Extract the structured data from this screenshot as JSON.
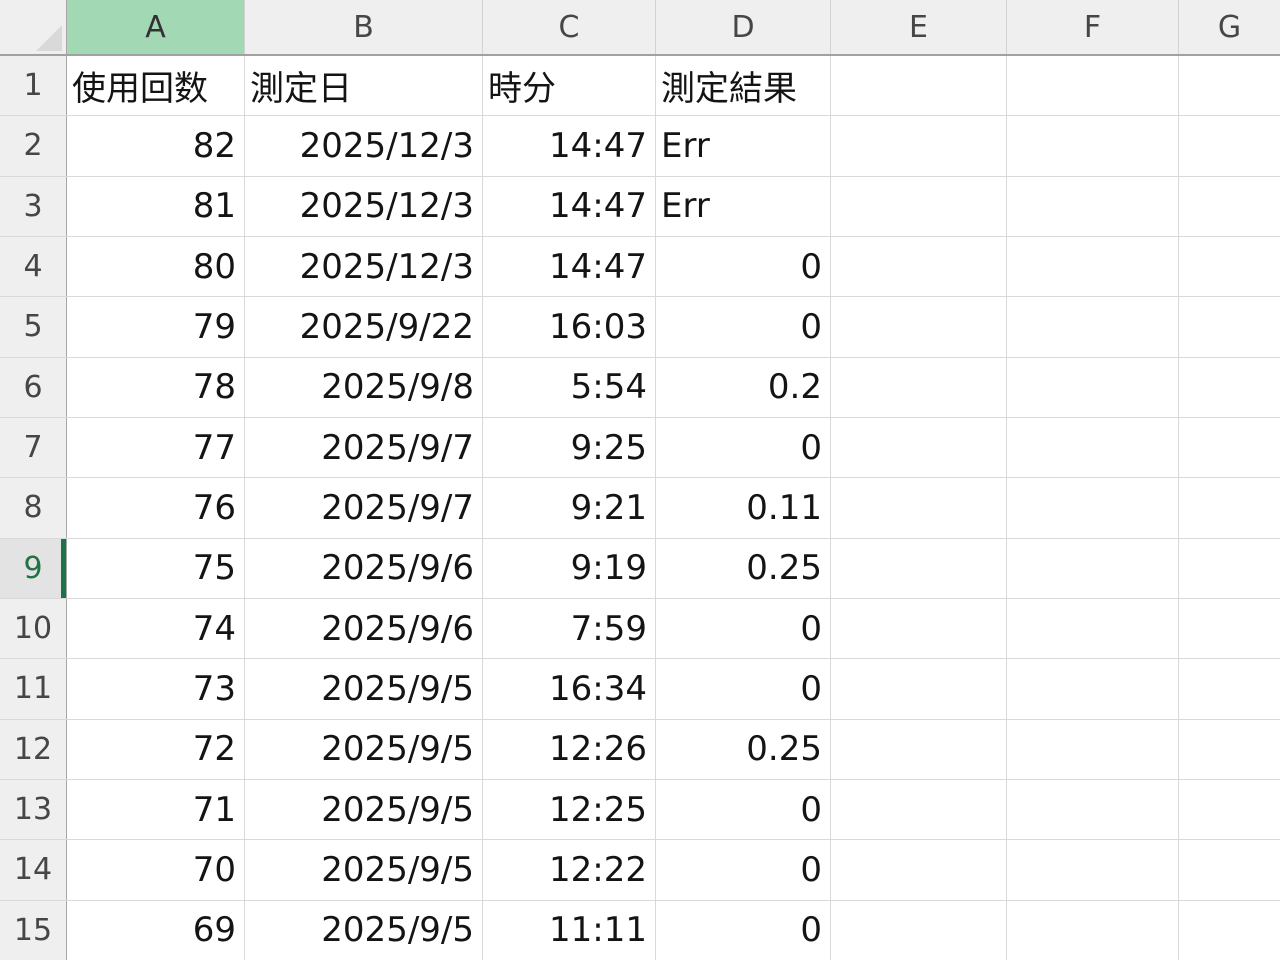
{
  "colors": {
    "selected_column_header_fill": "#a3d8b5",
    "selected_row_accent_bar": "#1f7245",
    "selected_row_number_text": "#217346",
    "header_background": "#efefef",
    "selected_row_header_background": "#e3e3e3",
    "gridline": "#d9d9d9",
    "header_separator": "#a1a1a1",
    "cell_text": "#141414",
    "header_text": "#464646"
  },
  "sheet": {
    "selected_cell": "A9",
    "columns": [
      {
        "letter": "A",
        "state": "selected"
      },
      {
        "letter": "B",
        "state": ""
      },
      {
        "letter": "C",
        "state": ""
      },
      {
        "letter": "D",
        "state": ""
      },
      {
        "letter": "E",
        "state": ""
      },
      {
        "letter": "F",
        "state": ""
      },
      {
        "letter": "G",
        "state": ""
      }
    ],
    "rows": [
      {
        "n": "1",
        "state": "",
        "cells": [
          {
            "v": "使用回数",
            "align": "left"
          },
          {
            "v": "測定日",
            "align": "left"
          },
          {
            "v": "時分",
            "align": "left"
          },
          {
            "v": "測定結果",
            "align": "left"
          },
          {
            "v": "",
            "align": "left"
          },
          {
            "v": "",
            "align": "left"
          },
          {
            "v": "",
            "align": "left"
          }
        ]
      },
      {
        "n": "2",
        "state": "",
        "cells": [
          {
            "v": "82",
            "align": "right"
          },
          {
            "v": "2025/12/3",
            "align": "right"
          },
          {
            "v": "14:47",
            "align": "right"
          },
          {
            "v": "Err",
            "align": "left"
          },
          {
            "v": "",
            "align": "left"
          },
          {
            "v": "",
            "align": "left"
          },
          {
            "v": "",
            "align": "left"
          }
        ]
      },
      {
        "n": "3",
        "state": "",
        "cells": [
          {
            "v": "81",
            "align": "right"
          },
          {
            "v": "2025/12/3",
            "align": "right"
          },
          {
            "v": "14:47",
            "align": "right"
          },
          {
            "v": "Err",
            "align": "left"
          },
          {
            "v": "",
            "align": "left"
          },
          {
            "v": "",
            "align": "left"
          },
          {
            "v": "",
            "align": "left"
          }
        ]
      },
      {
        "n": "4",
        "state": "",
        "cells": [
          {
            "v": "80",
            "align": "right"
          },
          {
            "v": "2025/12/3",
            "align": "right"
          },
          {
            "v": "14:47",
            "align": "right"
          },
          {
            "v": "0",
            "align": "right"
          },
          {
            "v": "",
            "align": "left"
          },
          {
            "v": "",
            "align": "left"
          },
          {
            "v": "",
            "align": "left"
          }
        ]
      },
      {
        "n": "5",
        "state": "",
        "cells": [
          {
            "v": "79",
            "align": "right"
          },
          {
            "v": "2025/9/22",
            "align": "right"
          },
          {
            "v": "16:03",
            "align": "right"
          },
          {
            "v": "0",
            "align": "right"
          },
          {
            "v": "",
            "align": "left"
          },
          {
            "v": "",
            "align": "left"
          },
          {
            "v": "",
            "align": "left"
          }
        ]
      },
      {
        "n": "6",
        "state": "",
        "cells": [
          {
            "v": "78",
            "align": "right"
          },
          {
            "v": "2025/9/8",
            "align": "right"
          },
          {
            "v": "5:54",
            "align": "right"
          },
          {
            "v": "0.2",
            "align": "right"
          },
          {
            "v": "",
            "align": "left"
          },
          {
            "v": "",
            "align": "left"
          },
          {
            "v": "",
            "align": "left"
          }
        ]
      },
      {
        "n": "7",
        "state": "",
        "cells": [
          {
            "v": "77",
            "align": "right"
          },
          {
            "v": "2025/9/7",
            "align": "right"
          },
          {
            "v": "9:25",
            "align": "right"
          },
          {
            "v": "0",
            "align": "right"
          },
          {
            "v": "",
            "align": "left"
          },
          {
            "v": "",
            "align": "left"
          },
          {
            "v": "",
            "align": "left"
          }
        ]
      },
      {
        "n": "8",
        "state": "",
        "cells": [
          {
            "v": "76",
            "align": "right"
          },
          {
            "v": "2025/9/7",
            "align": "right"
          },
          {
            "v": "9:21",
            "align": "right"
          },
          {
            "v": "0.11",
            "align": "right"
          },
          {
            "v": "",
            "align": "left"
          },
          {
            "v": "",
            "align": "left"
          },
          {
            "v": "",
            "align": "left"
          }
        ]
      },
      {
        "n": "9",
        "state": "selected",
        "cells": [
          {
            "v": "75",
            "align": "right"
          },
          {
            "v": "2025/9/6",
            "align": "right"
          },
          {
            "v": "9:19",
            "align": "right"
          },
          {
            "v": "0.25",
            "align": "right"
          },
          {
            "v": "",
            "align": "left"
          },
          {
            "v": "",
            "align": "left"
          },
          {
            "v": "",
            "align": "left"
          }
        ]
      },
      {
        "n": "10",
        "state": "",
        "cells": [
          {
            "v": "74",
            "align": "right"
          },
          {
            "v": "2025/9/6",
            "align": "right"
          },
          {
            "v": "7:59",
            "align": "right"
          },
          {
            "v": "0",
            "align": "right"
          },
          {
            "v": "",
            "align": "left"
          },
          {
            "v": "",
            "align": "left"
          },
          {
            "v": "",
            "align": "left"
          }
        ]
      },
      {
        "n": "11",
        "state": "",
        "cells": [
          {
            "v": "73",
            "align": "right"
          },
          {
            "v": "2025/9/5",
            "align": "right"
          },
          {
            "v": "16:34",
            "align": "right"
          },
          {
            "v": "0",
            "align": "right"
          },
          {
            "v": "",
            "align": "left"
          },
          {
            "v": "",
            "align": "left"
          },
          {
            "v": "",
            "align": "left"
          }
        ]
      },
      {
        "n": "12",
        "state": "",
        "cells": [
          {
            "v": "72",
            "align": "right"
          },
          {
            "v": "2025/9/5",
            "align": "right"
          },
          {
            "v": "12:26",
            "align": "right"
          },
          {
            "v": "0.25",
            "align": "right"
          },
          {
            "v": "",
            "align": "left"
          },
          {
            "v": "",
            "align": "left"
          },
          {
            "v": "",
            "align": "left"
          }
        ]
      },
      {
        "n": "13",
        "state": "",
        "cells": [
          {
            "v": "71",
            "align": "right"
          },
          {
            "v": "2025/9/5",
            "align": "right"
          },
          {
            "v": "12:25",
            "align": "right"
          },
          {
            "v": "0",
            "align": "right"
          },
          {
            "v": "",
            "align": "left"
          },
          {
            "v": "",
            "align": "left"
          },
          {
            "v": "",
            "align": "left"
          }
        ]
      },
      {
        "n": "14",
        "state": "",
        "cells": [
          {
            "v": "70",
            "align": "right"
          },
          {
            "v": "2025/9/5",
            "align": "right"
          },
          {
            "v": "12:22",
            "align": "right"
          },
          {
            "v": "0",
            "align": "right"
          },
          {
            "v": "",
            "align": "left"
          },
          {
            "v": "",
            "align": "left"
          },
          {
            "v": "",
            "align": "left"
          }
        ]
      },
      {
        "n": "15",
        "state": "",
        "cells": [
          {
            "v": "69",
            "align": "right"
          },
          {
            "v": "2025/9/5",
            "align": "right"
          },
          {
            "v": "11:11",
            "align": "right"
          },
          {
            "v": "0",
            "align": "right"
          },
          {
            "v": "",
            "align": "left"
          },
          {
            "v": "",
            "align": "left"
          },
          {
            "v": "",
            "align": "left"
          }
        ]
      }
    ]
  }
}
